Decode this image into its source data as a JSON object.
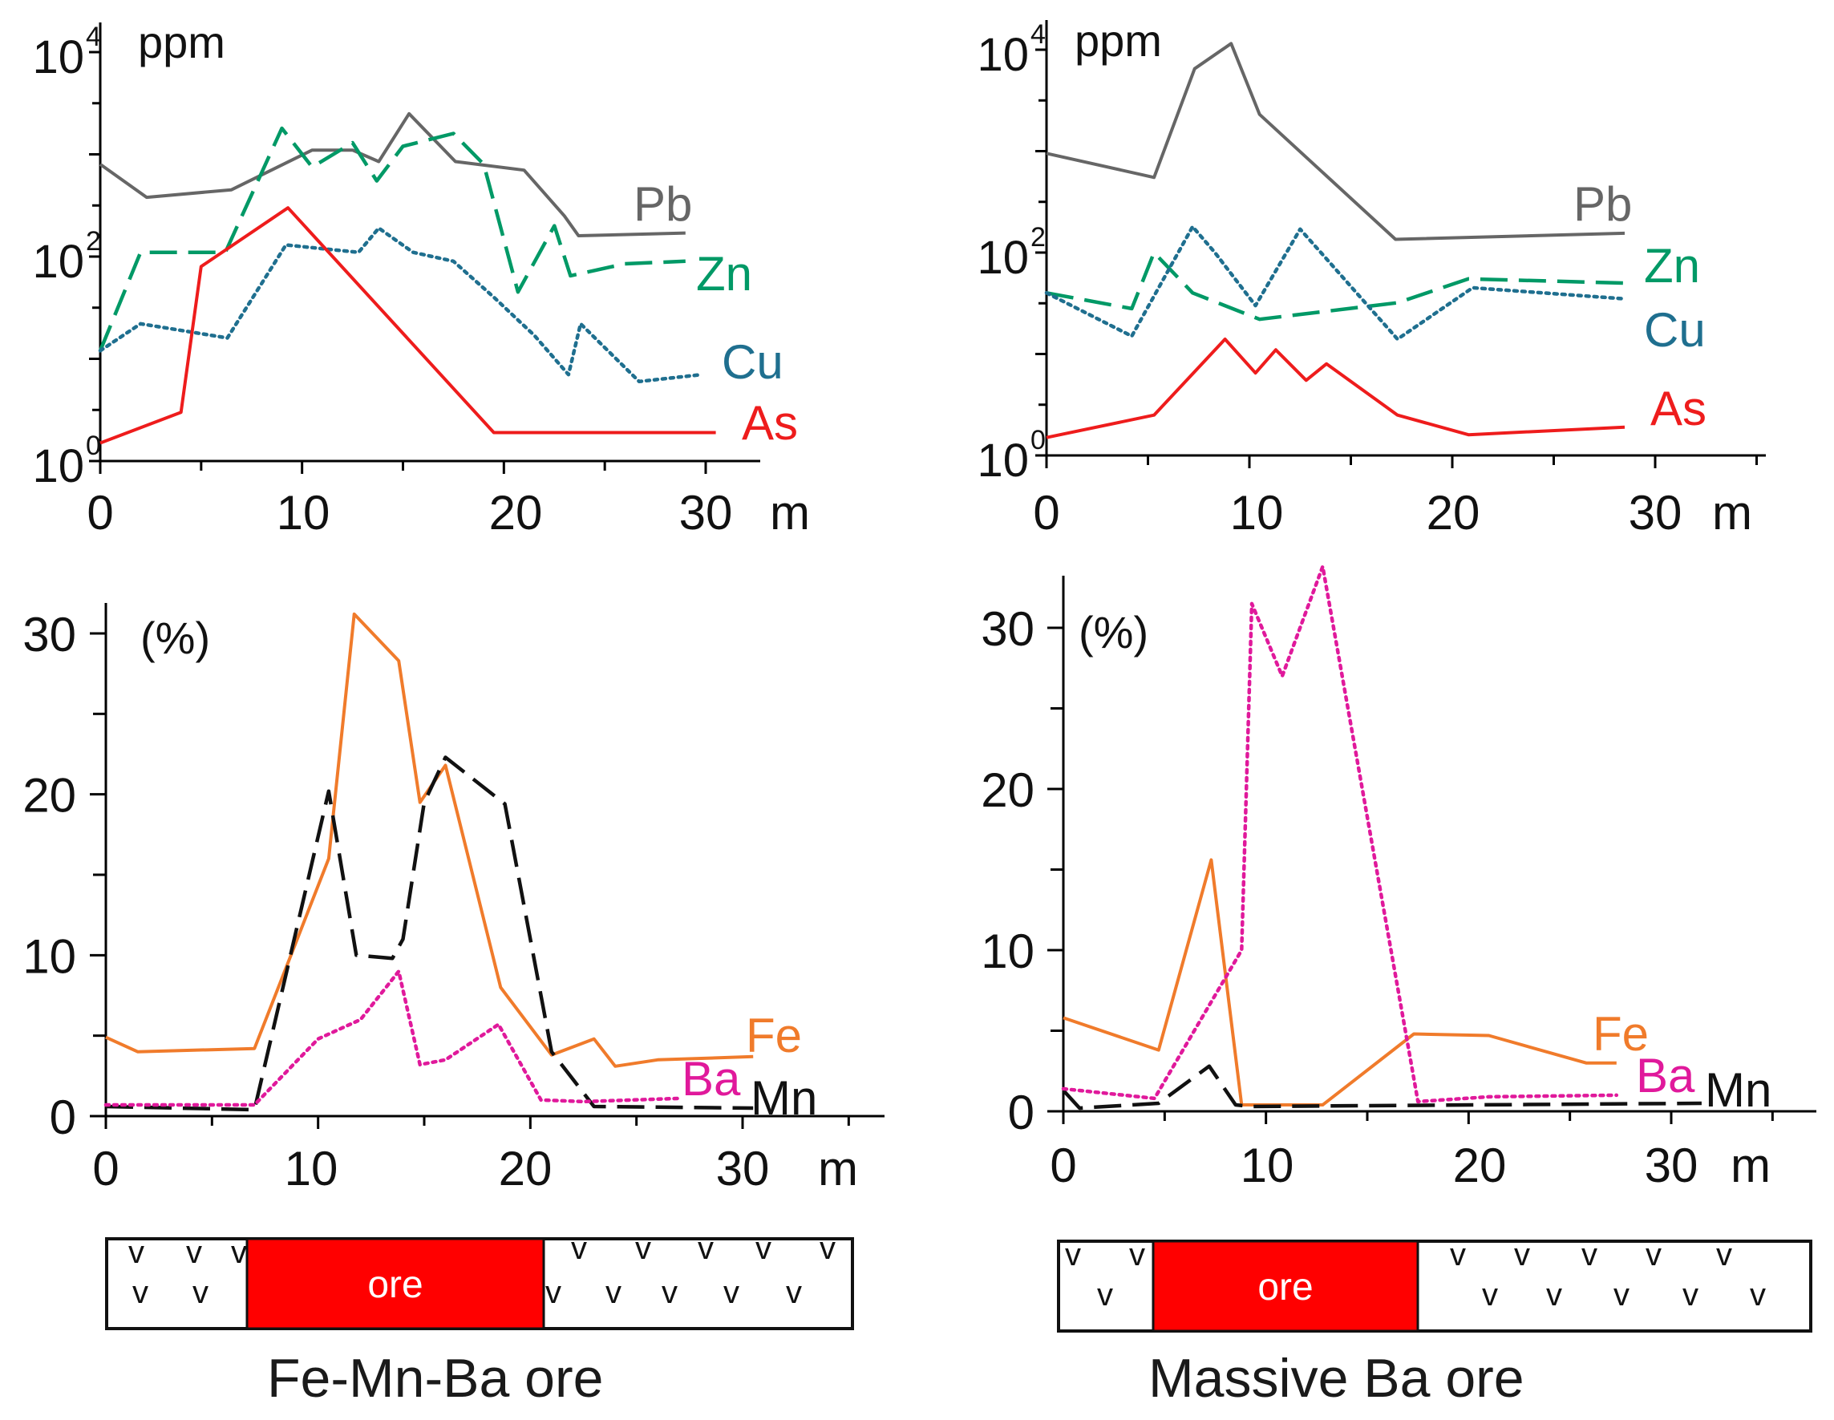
{
  "units": {
    "x_unit": "m",
    "ppm_label": "ppm",
    "pct_label": "(%)"
  },
  "colors": {
    "Pb": "#666666",
    "Zn": "#009966",
    "Cu": "#1f6f8f",
    "As": "#ee1c1c",
    "Fe": "#f07b2b",
    "Mn": "#111111",
    "Ba": "#e0199b",
    "ore": "#ff0000"
  },
  "chart_data": [
    {
      "id": "ppm-fe-mn-ba",
      "type": "line",
      "scale": "log",
      "x_ticks": [
        0,
        10,
        20,
        30
      ],
      "x_unit": "m",
      "ylabel": "ppm",
      "y_ticks": [
        {
          "exp": 0,
          "label": "10",
          "sup": "0"
        },
        {
          "exp": 2,
          "label": "10",
          "sup": "2"
        },
        {
          "exp": 4,
          "label": "10",
          "sup": "4"
        }
      ],
      "xlim": [
        0,
        32
      ],
      "ylim_exp": [
        0,
        4.1
      ],
      "series": [
        {
          "name": "Pb",
          "style": "solid",
          "x": [
            0,
            2.3,
            6.5,
            10.5,
            12.5,
            13.8,
            15.3,
            17.6,
            21,
            23,
            23.7,
            29
          ],
          "y": [
            800,
            380,
            450,
            1100,
            1100,
            850,
            2500,
            850,
            700,
            250,
            160,
            170
          ]
        },
        {
          "name": "Zn",
          "style": "dashed",
          "x": [
            0,
            2,
            6.2,
            9,
            10.5,
            12.5,
            13.7,
            15,
            17.5,
            19,
            20.7,
            22.5,
            23.3,
            26,
            29
          ],
          "y": [
            12,
            110,
            110,
            1800,
            750,
            1300,
            550,
            1200,
            1600,
            800,
            45,
            200,
            65,
            85,
            90
          ]
        },
        {
          "name": "Cu",
          "style": "dotted",
          "x": [
            0,
            2,
            6.3,
            9.2,
            12.8,
            13.8,
            15.5,
            17.5,
            19.5,
            21.5,
            23.2,
            23.8,
            26.7,
            29.8
          ],
          "y": [
            12,
            22,
            16,
            130,
            110,
            190,
            110,
            90,
            40,
            17,
            7,
            22,
            6,
            7
          ]
        },
        {
          "name": "As",
          "style": "solid",
          "x": [
            0,
            4,
            5,
            9.3,
            19.5,
            23,
            28,
            30.5
          ],
          "y": [
            1.5,
            3,
            80,
            300,
            1.9,
            1.9,
            1.9,
            1.9
          ]
        }
      ]
    },
    {
      "id": "ppm-massive-ba",
      "type": "line",
      "scale": "log",
      "x_ticks": [
        0,
        10,
        20,
        30
      ],
      "x_unit": "m",
      "ylabel": "ppm",
      "y_ticks": [
        {
          "exp": 0,
          "label": "10",
          "sup": "0"
        },
        {
          "exp": 2,
          "label": "10",
          "sup": "2"
        },
        {
          "exp": 4,
          "label": "10",
          "sup": "4"
        }
      ],
      "xlim": [
        0,
        35
      ],
      "ylim_exp": [
        0,
        4.15
      ],
      "series": [
        {
          "name": "Pb",
          "style": "solid",
          "x": [
            0,
            5.3,
            7.3,
            9.1,
            10.5,
            17.2,
            28.5
          ],
          "y": [
            950,
            550,
            6500,
            11500,
            2300,
            135,
            155
          ]
        },
        {
          "name": "Zn",
          "style": "dashed",
          "x": [
            0,
            4.2,
            5.3,
            7.2,
            10.5,
            17.3,
            20.8,
            28.5
          ],
          "y": [
            40,
            28,
            100,
            40,
            22,
            32,
            55,
            50
          ]
        },
        {
          "name": "Cu",
          "style": "dotted",
          "x": [
            0,
            4.2,
            7.2,
            8.3,
            10.3,
            12.5,
            17.3,
            21,
            28.5
          ],
          "y": [
            40,
            15,
            180,
            100,
            30,
            170,
            14,
            45,
            35
          ]
        },
        {
          "name": "As",
          "style": "solid",
          "x": [
            0,
            5.3,
            8.8,
            10.3,
            11.3,
            12.8,
            13.8,
            17.3,
            20.8,
            28.5
          ],
          "y": [
            1.5,
            2.5,
            14,
            6.5,
            11,
            5.5,
            8,
            2.5,
            1.6,
            1.9
          ]
        }
      ]
    },
    {
      "id": "pct-fe-mn-ba",
      "type": "line",
      "scale": "linear",
      "x_ticks": [
        0,
        10,
        20,
        30
      ],
      "x_unit": "m",
      "ylabel": "(%)",
      "y_ticks": [
        0,
        10,
        20,
        30
      ],
      "xlim": [
        0,
        35
      ],
      "ylim": [
        0,
        32
      ],
      "series": [
        {
          "name": "Fe",
          "style": "solid",
          "x": [
            0,
            1.5,
            7,
            10.5,
            11.7,
            13.8,
            14.8,
            16,
            18.6,
            21,
            23,
            24,
            26,
            30.5
          ],
          "y": [
            4.9,
            4,
            4.2,
            16,
            31.2,
            28.3,
            19.5,
            21.8,
            8,
            3.8,
            4.8,
            3.1,
            3.5,
            3.7
          ]
        },
        {
          "name": "Mn",
          "style": "dashed",
          "x": [
            0,
            7,
            10.5,
            11.8,
            13.5,
            14,
            15,
            16,
            18.8,
            21,
            23,
            30.5
          ],
          "y": [
            0.6,
            0.4,
            20.2,
            10,
            9.8,
            11,
            19.5,
            22.3,
            19.4,
            4,
            0.6,
            0.5
          ]
        },
        {
          "name": "Ba",
          "style": "dotted",
          "x": [
            0,
            7,
            10,
            12,
            13.8,
            14.8,
            16,
            18.5,
            20.5,
            22.5,
            27
          ],
          "y": [
            0.7,
            0.7,
            4.8,
            6,
            9,
            3.2,
            3.5,
            5.7,
            1,
            0.9,
            1.1
          ]
        }
      ]
    },
    {
      "id": "pct-massive-ba",
      "type": "line",
      "scale": "linear",
      "x_ticks": [
        0,
        10,
        20,
        30
      ],
      "x_unit": "m",
      "ylabel": "(%)",
      "y_ticks": [
        0,
        10,
        20,
        30
      ],
      "xlim": [
        0,
        36
      ],
      "ylim": [
        0,
        34
      ],
      "series": [
        {
          "name": "Fe",
          "style": "solid",
          "x": [
            0,
            4.7,
            7.3,
            8.8,
            12.8,
            17.3,
            21,
            25.8,
            27.3
          ],
          "y": [
            5.8,
            3.8,
            15.6,
            0.4,
            0.4,
            4.8,
            4.7,
            3,
            3
          ]
        },
        {
          "name": "Mn",
          "style": "dashed",
          "x": [
            0,
            0.8,
            4.7,
            7.2,
            8.5,
            9.3,
            31.5
          ],
          "y": [
            1.3,
            0.2,
            0.5,
            2.8,
            0.4,
            0.3,
            0.5
          ]
        },
        {
          "name": "Ba",
          "style": "dotted",
          "x": [
            0,
            4.5,
            8.8,
            9.3,
            10.8,
            12.8,
            17.5,
            21,
            27.3
          ],
          "y": [
            1.4,
            0.8,
            10,
            31.5,
            27,
            33.8,
            0.6,
            0.9,
            1
          ]
        }
      ]
    }
  ],
  "logs": [
    {
      "id": "log-left",
      "ore_label": "ore",
      "caption": "Fe-Mn-Ba ore",
      "v_mark": "v"
    },
    {
      "id": "log-right",
      "ore_label": "ore",
      "caption": "Massive Ba ore",
      "v_mark": "v"
    }
  ]
}
